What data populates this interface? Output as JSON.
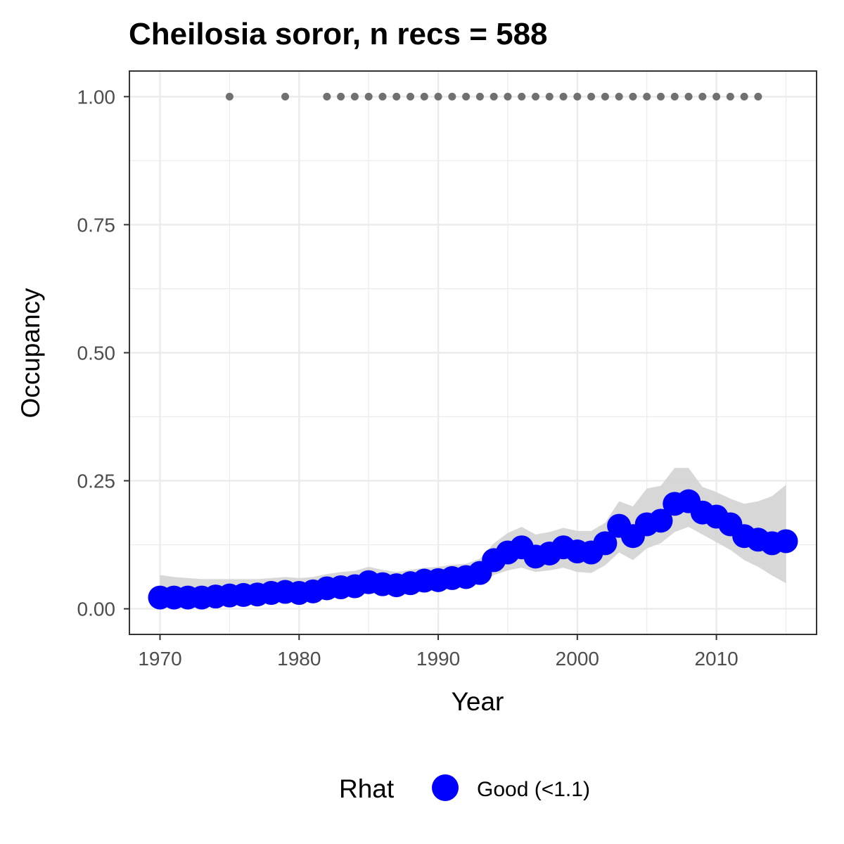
{
  "chart_data": {
    "type": "line",
    "title": "Cheilosia soror, n recs = 588",
    "xlabel": "Year",
    "ylabel": "Occupancy",
    "xlim": [
      1967.8,
      2017.2
    ],
    "ylim": [
      -0.05,
      1.05
    ],
    "x_ticks": [
      1970,
      1980,
      1990,
      2000,
      2010
    ],
    "x_tick_labels": [
      "1970",
      "1980",
      "1990",
      "2000",
      "2010"
    ],
    "y_ticks": [
      0,
      0.25,
      0.5,
      0.75,
      1.0
    ],
    "y_tick_labels": [
      "0.00",
      "0.25",
      "0.50",
      "0.75",
      "1.00"
    ],
    "grid": true,
    "legend": {
      "title": "Rhat",
      "position": "bottom",
      "entries": [
        {
          "label": "Good (<1.1)",
          "color": "#0000ff"
        }
      ]
    },
    "series": [
      {
        "name": "Good (<1.1)",
        "color": "#0000ff",
        "x": [
          1970,
          1971,
          1972,
          1973,
          1974,
          1975,
          1976,
          1977,
          1978,
          1979,
          1980,
          1981,
          1982,
          1983,
          1984,
          1985,
          1986,
          1987,
          1988,
          1989,
          1990,
          1991,
          1992,
          1993,
          1994,
          1995,
          1996,
          1997,
          1998,
          1999,
          2000,
          2001,
          2002,
          2003,
          2004,
          2005,
          2006,
          2007,
          2008,
          2009,
          2010,
          2011,
          2012,
          2013,
          2014,
          2015
        ],
        "values": [
          0.022,
          0.022,
          0.022,
          0.022,
          0.024,
          0.026,
          0.027,
          0.028,
          0.031,
          0.033,
          0.031,
          0.034,
          0.04,
          0.042,
          0.044,
          0.052,
          0.048,
          0.046,
          0.05,
          0.055,
          0.056,
          0.06,
          0.062,
          0.07,
          0.095,
          0.11,
          0.12,
          0.102,
          0.108,
          0.12,
          0.112,
          0.11,
          0.128,
          0.162,
          0.142,
          0.165,
          0.172,
          0.205,
          0.21,
          0.188,
          0.18,
          0.165,
          0.142,
          0.135,
          0.128,
          0.132
        ],
        "ci_lower": [
          0.003,
          0.004,
          0.005,
          0.006,
          0.007,
          0.008,
          0.01,
          0.011,
          0.013,
          0.014,
          0.014,
          0.016,
          0.02,
          0.022,
          0.024,
          0.03,
          0.028,
          0.027,
          0.03,
          0.034,
          0.036,
          0.04,
          0.042,
          0.048,
          0.066,
          0.075,
          0.08,
          0.072,
          0.075,
          0.08,
          0.072,
          0.07,
          0.085,
          0.11,
          0.095,
          0.118,
          0.128,
          0.15,
          0.16,
          0.145,
          0.13,
          0.115,
          0.095,
          0.082,
          0.065,
          0.05
        ],
        "ci_upper": [
          0.066,
          0.062,
          0.06,
          0.058,
          0.058,
          0.058,
          0.058,
          0.058,
          0.06,
          0.062,
          0.06,
          0.062,
          0.068,
          0.072,
          0.074,
          0.082,
          0.076,
          0.072,
          0.076,
          0.08,
          0.082,
          0.086,
          0.088,
          0.098,
          0.128,
          0.148,
          0.16,
          0.145,
          0.15,
          0.158,
          0.152,
          0.152,
          0.168,
          0.21,
          0.2,
          0.235,
          0.24,
          0.275,
          0.275,
          0.238,
          0.228,
          0.215,
          0.205,
          0.21,
          0.22,
          0.242
        ]
      }
    ],
    "records_marker_years": [
      1975,
      1979,
      1982,
      1983,
      1984,
      1985,
      1986,
      1987,
      1988,
      1989,
      1990,
      1991,
      1992,
      1993,
      1994,
      1995,
      1996,
      1997,
      1998,
      1999,
      2000,
      2001,
      2002,
      2003,
      2004,
      2005,
      2006,
      2007,
      2008,
      2009,
      2010,
      2011,
      2012,
      2013
    ],
    "records_marker_value": 1.0,
    "colors": {
      "line": "#0000ff",
      "ribbon": "#d3d3d3",
      "records": "#707070",
      "grid": "#ebebeb",
      "panel_border": "#333333"
    }
  }
}
